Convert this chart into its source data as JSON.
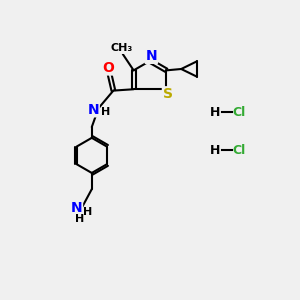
{
  "bg_color": "#f0f0f0",
  "bond_color": "#000000",
  "atom_colors": {
    "O": "#ff0000",
    "N": "#0000ff",
    "S": "#bbaa00",
    "Cl": "#33aa33",
    "H": "#000000",
    "C": "#000000"
  },
  "lw": 1.5
}
